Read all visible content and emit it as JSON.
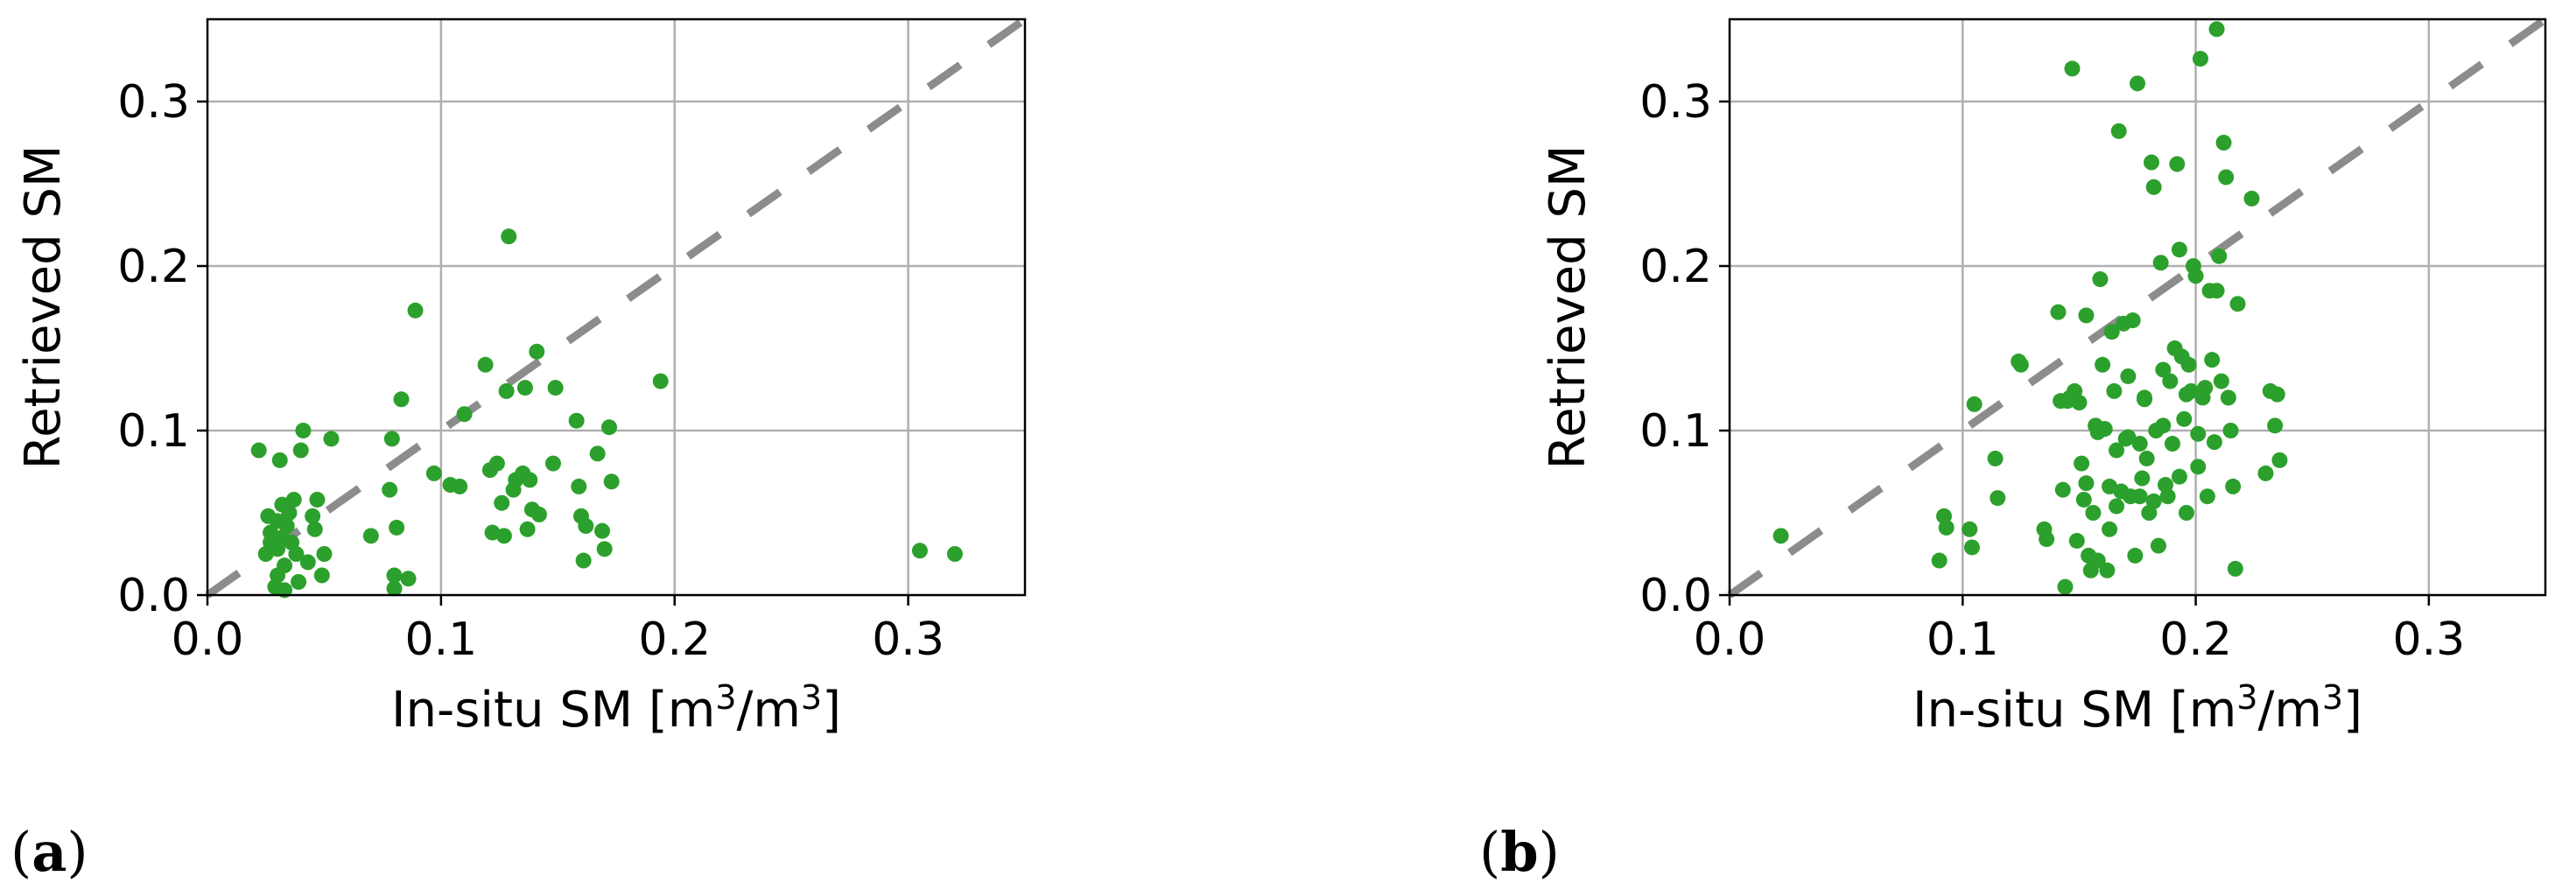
{
  "chart_data": [
    {
      "type": "scatter",
      "panel_label": "(a)",
      "xlabel": "In-situ SM [m",
      "xlabel_sup": "3",
      "xlabel_mid": "/m",
      "xlabel_sup2": "3",
      "xlabel_end": "]",
      "ylabel": "Retrieved SM",
      "xlim": [
        0,
        0.35
      ],
      "ylim": [
        0,
        0.35
      ],
      "xticks": [
        "0.0",
        "0.1",
        "0.2",
        "0.3"
      ],
      "yticks": [
        "0.0",
        "0.1",
        "0.2",
        "0.3"
      ],
      "tick_values": [
        0.0,
        0.1,
        0.2,
        0.3
      ],
      "grid": true,
      "marker_color": "#2ca02c",
      "reference_line": {
        "style": "dashed",
        "color": "#8c8c8c",
        "from": [
          0,
          0
        ],
        "to": [
          0.35,
          0.35
        ]
      },
      "points": [
        [
          0.022,
          0.088
        ],
        [
          0.025,
          0.025
        ],
        [
          0.026,
          0.048
        ],
        [
          0.027,
          0.038
        ],
        [
          0.027,
          0.032
        ],
        [
          0.029,
          0.005
        ],
        [
          0.03,
          0.045
        ],
        [
          0.03,
          0.028
        ],
        [
          0.03,
          0.012
        ],
        [
          0.031,
          0.082
        ],
        [
          0.032,
          0.055
        ],
        [
          0.032,
          0.035
        ],
        [
          0.033,
          0.018
        ],
        [
          0.033,
          0.003
        ],
        [
          0.034,
          0.042
        ],
        [
          0.035,
          0.05
        ],
        [
          0.036,
          0.032
        ],
        [
          0.037,
          0.058
        ],
        [
          0.038,
          0.025
        ],
        [
          0.039,
          0.008
        ],
        [
          0.04,
          0.088
        ],
        [
          0.041,
          0.1
        ],
        [
          0.043,
          0.02
        ],
        [
          0.045,
          0.048
        ],
        [
          0.046,
          0.04
        ],
        [
          0.047,
          0.058
        ],
        [
          0.049,
          0.012
        ],
        [
          0.05,
          0.025
        ],
        [
          0.053,
          0.095
        ],
        [
          0.07,
          0.036
        ],
        [
          0.078,
          0.064
        ],
        [
          0.079,
          0.095
        ],
        [
          0.08,
          0.004
        ],
        [
          0.08,
          0.012
        ],
        [
          0.081,
          0.041
        ],
        [
          0.083,
          0.119
        ],
        [
          0.086,
          0.01
        ],
        [
          0.089,
          0.173
        ],
        [
          0.097,
          0.074
        ],
        [
          0.104,
          0.067
        ],
        [
          0.108,
          0.066
        ],
        [
          0.11,
          0.11
        ],
        [
          0.119,
          0.14
        ],
        [
          0.121,
          0.076
        ],
        [
          0.122,
          0.038
        ],
        [
          0.124,
          0.08
        ],
        [
          0.126,
          0.056
        ],
        [
          0.127,
          0.036
        ],
        [
          0.128,
          0.124
        ],
        [
          0.129,
          0.218
        ],
        [
          0.131,
          0.064
        ],
        [
          0.132,
          0.07
        ],
        [
          0.135,
          0.074
        ],
        [
          0.136,
          0.126
        ],
        [
          0.137,
          0.04
        ],
        [
          0.138,
          0.07
        ],
        [
          0.139,
          0.052
        ],
        [
          0.141,
          0.148
        ],
        [
          0.142,
          0.049
        ],
        [
          0.148,
          0.08
        ],
        [
          0.149,
          0.126
        ],
        [
          0.158,
          0.106
        ],
        [
          0.159,
          0.066
        ],
        [
          0.16,
          0.048
        ],
        [
          0.161,
          0.021
        ],
        [
          0.162,
          0.042
        ],
        [
          0.167,
          0.086
        ],
        [
          0.169,
          0.039
        ],
        [
          0.17,
          0.028
        ],
        [
          0.172,
          0.102
        ],
        [
          0.173,
          0.069
        ],
        [
          0.194,
          0.13
        ],
        [
          0.305,
          0.027
        ],
        [
          0.32,
          0.025
        ]
      ]
    },
    {
      "type": "scatter",
      "panel_label": "(b)",
      "xlabel": "In-situ SM [m",
      "xlabel_sup": "3",
      "xlabel_mid": "/m",
      "xlabel_sup2": "3",
      "xlabel_end": "]",
      "ylabel": "Retrieved SM",
      "xlim": [
        0,
        0.35
      ],
      "ylim": [
        0,
        0.35
      ],
      "xticks": [
        "0.0",
        "0.1",
        "0.2",
        "0.3"
      ],
      "yticks": [
        "0.0",
        "0.1",
        "0.2",
        "0.3"
      ],
      "tick_values": [
        0.0,
        0.1,
        0.2,
        0.3
      ],
      "grid": true,
      "marker_color": "#2ca02c",
      "reference_line": {
        "style": "dashed",
        "color": "#8c8c8c",
        "from": [
          0,
          0
        ],
        "to": [
          0.35,
          0.35
        ]
      },
      "points": [
        [
          0.022,
          0.036
        ],
        [
          0.09,
          0.021
        ],
        [
          0.092,
          0.048
        ],
        [
          0.093,
          0.041
        ],
        [
          0.103,
          0.04
        ],
        [
          0.104,
          0.029
        ],
        [
          0.105,
          0.116
        ],
        [
          0.114,
          0.083
        ],
        [
          0.115,
          0.059
        ],
        [
          0.124,
          0.142
        ],
        [
          0.125,
          0.14
        ],
        [
          0.135,
          0.04
        ],
        [
          0.136,
          0.034
        ],
        [
          0.141,
          0.172
        ],
        [
          0.142,
          0.118
        ],
        [
          0.143,
          0.064
        ],
        [
          0.144,
          0.005
        ],
        [
          0.145,
          0.118
        ],
        [
          0.146,
          0.12
        ],
        [
          0.147,
          0.32
        ],
        [
          0.148,
          0.124
        ],
        [
          0.149,
          0.033
        ],
        [
          0.15,
          0.117
        ],
        [
          0.151,
          0.08
        ],
        [
          0.152,
          0.058
        ],
        [
          0.153,
          0.17
        ],
        [
          0.154,
          0.024
        ],
        [
          0.155,
          0.015
        ],
        [
          0.156,
          0.05
        ],
        [
          0.157,
          0.103
        ],
        [
          0.158,
          0.021
        ],
        [
          0.159,
          0.192
        ],
        [
          0.16,
          0.14
        ],
        [
          0.161,
          0.101
        ],
        [
          0.162,
          0.015
        ],
        [
          0.163,
          0.066
        ],
        [
          0.164,
          0.16
        ],
        [
          0.165,
          0.124
        ],
        [
          0.166,
          0.054
        ],
        [
          0.167,
          0.282
        ],
        [
          0.168,
          0.063
        ],
        [
          0.169,
          0.165
        ],
        [
          0.17,
          0.095
        ],
        [
          0.171,
          0.133
        ],
        [
          0.172,
          0.06
        ],
        [
          0.173,
          0.167
        ],
        [
          0.174,
          0.024
        ],
        [
          0.175,
          0.311
        ],
        [
          0.176,
          0.092
        ],
        [
          0.177,
          0.071
        ],
        [
          0.178,
          0.12
        ],
        [
          0.179,
          0.083
        ],
        [
          0.18,
          0.05
        ],
        [
          0.181,
          0.263
        ],
        [
          0.182,
          0.248
        ],
        [
          0.183,
          0.1
        ],
        [
          0.184,
          0.03
        ],
        [
          0.185,
          0.202
        ],
        [
          0.186,
          0.103
        ],
        [
          0.187,
          0.067
        ],
        [
          0.188,
          0.06
        ],
        [
          0.189,
          0.13
        ],
        [
          0.19,
          0.092
        ],
        [
          0.191,
          0.15
        ],
        [
          0.192,
          0.262
        ],
        [
          0.193,
          0.21
        ],
        [
          0.194,
          0.145
        ],
        [
          0.195,
          0.107
        ],
        [
          0.196,
          0.122
        ],
        [
          0.197,
          0.14
        ],
        [
          0.198,
          0.124
        ],
        [
          0.199,
          0.2
        ],
        [
          0.2,
          0.194
        ],
        [
          0.201,
          0.078
        ],
        [
          0.202,
          0.326
        ],
        [
          0.203,
          0.12
        ],
        [
          0.204,
          0.126
        ],
        [
          0.205,
          0.06
        ],
        [
          0.206,
          0.185
        ],
        [
          0.207,
          0.143
        ],
        [
          0.208,
          0.093
        ],
        [
          0.209,
          0.344
        ],
        [
          0.21,
          0.206
        ],
        [
          0.211,
          0.13
        ],
        [
          0.212,
          0.275
        ],
        [
          0.213,
          0.254
        ],
        [
          0.214,
          0.12
        ],
        [
          0.215,
          0.1
        ],
        [
          0.216,
          0.066
        ],
        [
          0.217,
          0.016
        ],
        [
          0.218,
          0.177
        ],
        [
          0.224,
          0.241
        ],
        [
          0.23,
          0.074
        ],
        [
          0.232,
          0.124
        ],
        [
          0.234,
          0.103
        ],
        [
          0.235,
          0.122
        ],
        [
          0.236,
          0.082
        ],
        [
          0.209,
          0.185
        ],
        [
          0.196,
          0.05
        ],
        [
          0.186,
          0.137
        ],
        [
          0.176,
          0.06
        ],
        [
          0.166,
          0.088
        ],
        [
          0.158,
          0.099
        ],
        [
          0.171,
          0.096
        ],
        [
          0.182,
          0.057
        ],
        [
          0.193,
          0.072
        ],
        [
          0.201,
          0.098
        ],
        [
          0.178,
          0.119
        ],
        [
          0.163,
          0.04
        ],
        [
          0.153,
          0.068
        ]
      ]
    }
  ]
}
